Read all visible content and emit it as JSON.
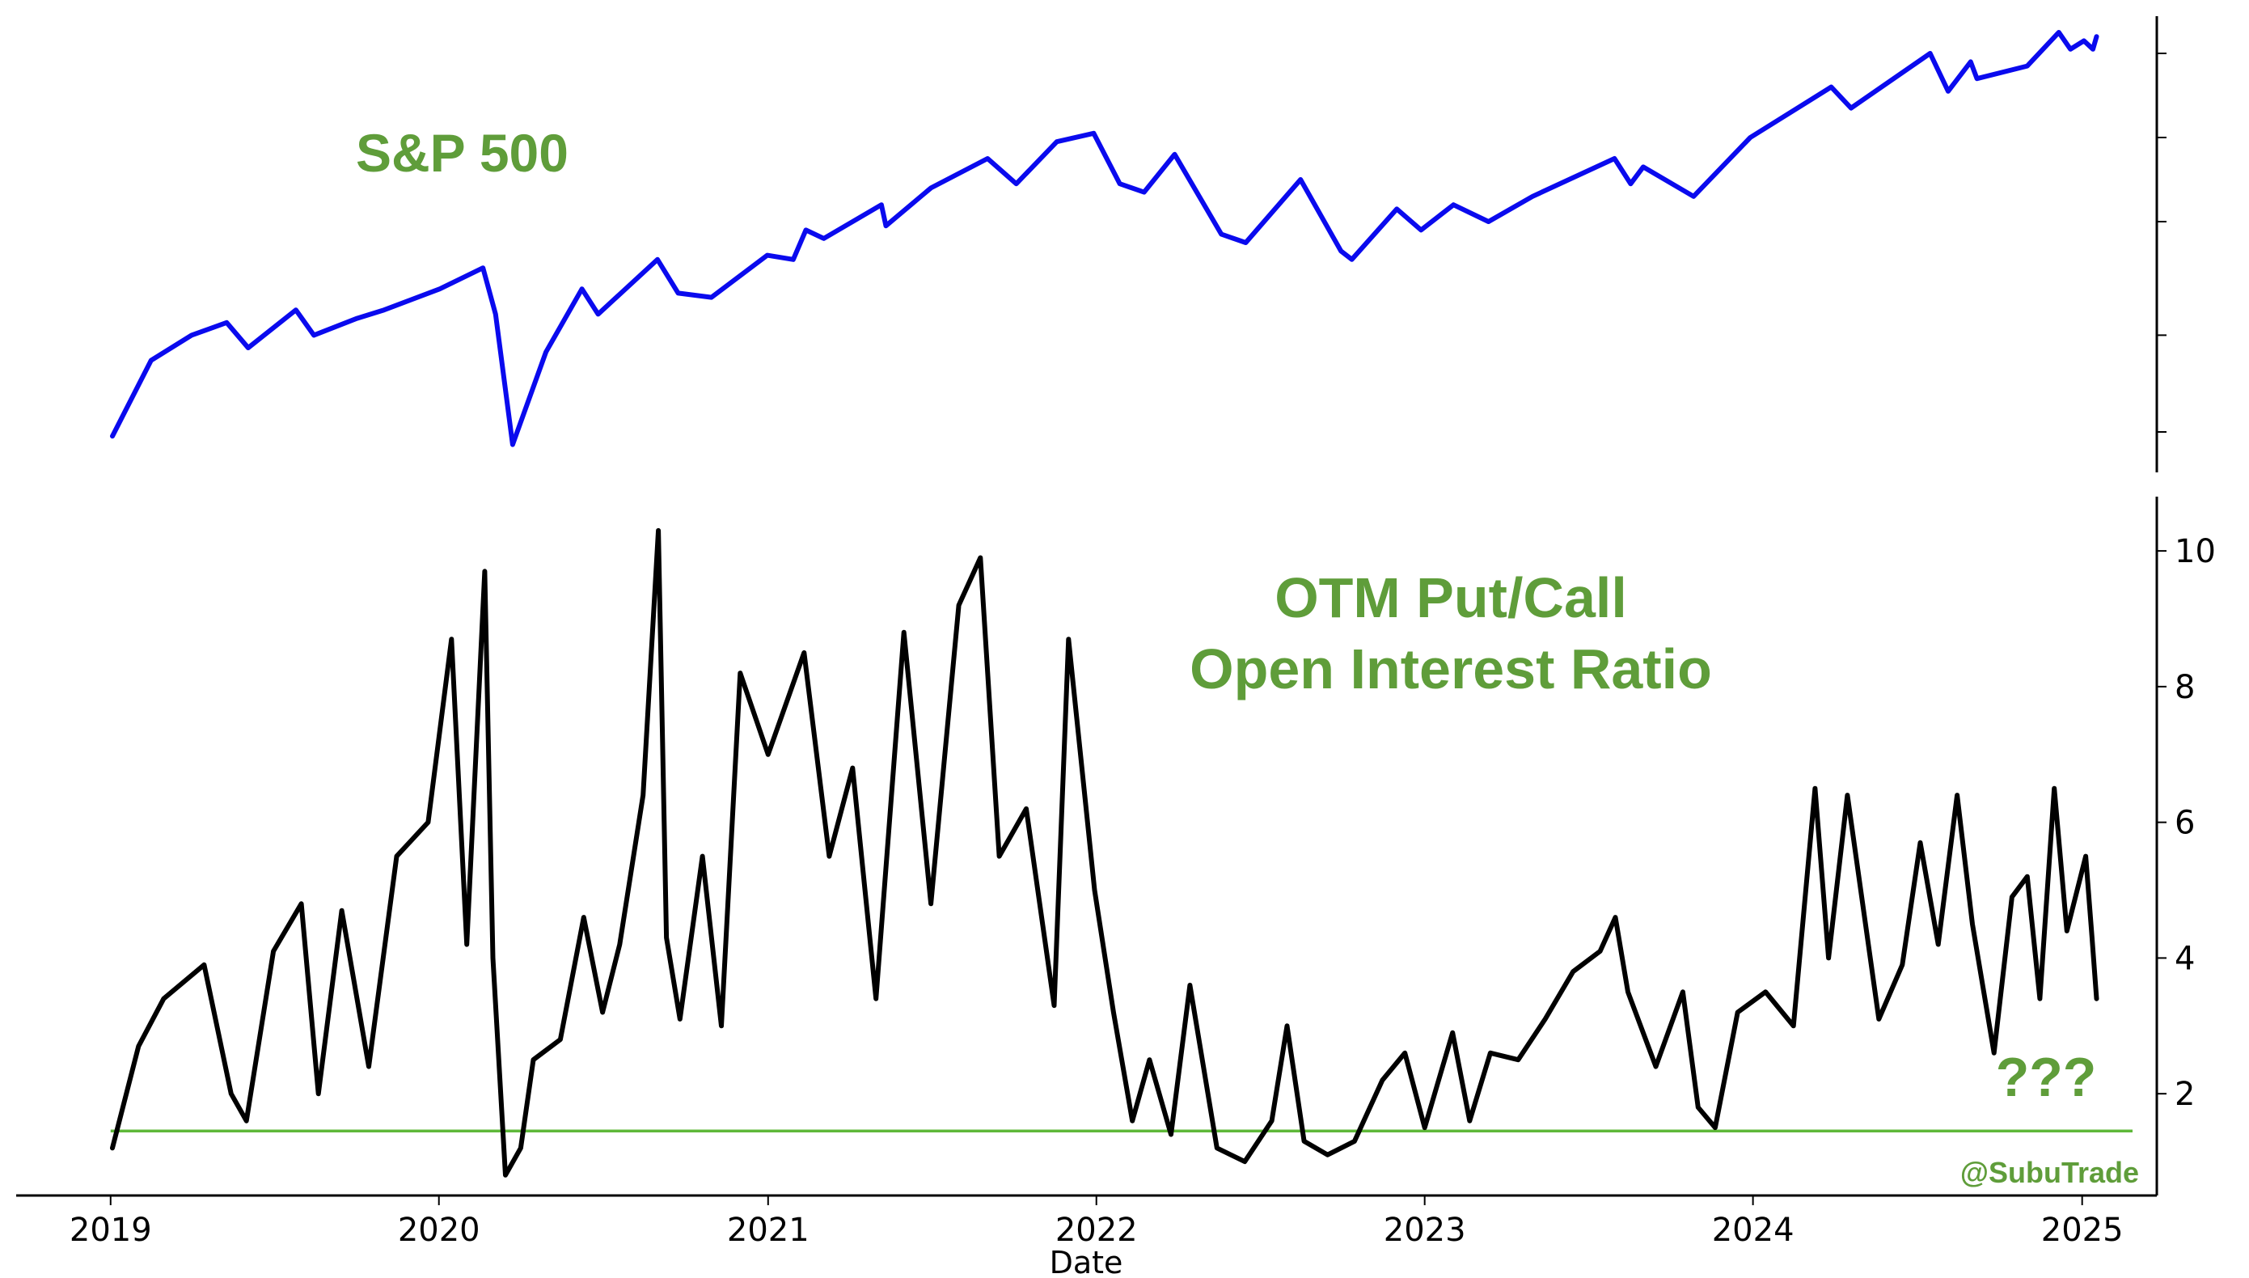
{
  "chart_data": [
    {
      "type": "line",
      "panel": "top",
      "annotation": "S&P 500",
      "series": [
        {
          "color": "#0a0aee",
          "x": [
            "2019-01-03",
            "2019-02-15",
            "2019-04-01",
            "2019-05-10",
            "2019-06-03",
            "2019-07-26",
            "2019-08-15",
            "2019-10-02",
            "2019-11-01",
            "2020-01-02",
            "2020-02-19",
            "2020-03-04",
            "2020-03-23",
            "2020-04-29",
            "2020-06-08",
            "2020-06-26",
            "2020-08-31",
            "2020-09-23",
            "2020-10-30",
            "2020-12-31",
            "2021-01-29",
            "2021-02-12",
            "2021-03-04",
            "2021-05-07",
            "2021-05-12",
            "2021-07-01",
            "2021-09-02",
            "2021-10-04",
            "2021-11-18",
            "2021-12-29",
            "2022-01-27",
            "2022-02-23",
            "2022-03-29",
            "2022-05-20",
            "2022-06-16",
            "2022-08-16",
            "2022-09-30",
            "2022-10-12",
            "2022-12-01",
            "2022-12-28",
            "2023-02-02",
            "2023-03-13",
            "2023-05-01",
            "2023-07-31",
            "2023-08-18",
            "2023-09-01",
            "2023-10-27",
            "2023-12-29",
            "2024-03-28",
            "2024-04-19",
            "2024-07-16",
            "2024-08-05",
            "2024-08-30",
            "2024-09-06",
            "2024-11-01",
            "2024-12-06",
            "2024-12-19",
            "2025-01-03",
            "2025-01-13",
            "2025-01-17"
          ],
          "values": [
            0.04,
            0.22,
            0.28,
            0.31,
            0.25,
            0.34,
            0.28,
            0.32,
            0.34,
            0.39,
            0.44,
            0.33,
            0.02,
            0.24,
            0.39,
            0.33,
            0.46,
            0.38,
            0.37,
            0.47,
            0.46,
            0.53,
            0.51,
            0.59,
            0.54,
            0.63,
            0.7,
            0.64,
            0.74,
            0.76,
            0.64,
            0.62,
            0.71,
            0.52,
            0.5,
            0.65,
            0.48,
            0.46,
            0.58,
            0.53,
            0.59,
            0.55,
            0.61,
            0.7,
            0.64,
            0.68,
            0.61,
            0.75,
            0.87,
            0.82,
            0.95,
            0.86,
            0.93,
            0.89,
            0.92,
            1.0,
            0.96,
            0.98,
            0.96,
            0.99
          ]
        }
      ]
    },
    {
      "type": "line",
      "panel": "bottom",
      "annotation": [
        "OTM Put/Call",
        "Open Interest Ratio"
      ],
      "xlabel": "Date",
      "ylim": [
        0.5,
        10.8
      ],
      "yticks": [
        2,
        4,
        6,
        8,
        10
      ],
      "ytick_labels": [
        "2",
        "4",
        "6",
        "8",
        "10"
      ],
      "xticks": [
        "2019-01-01",
        "2020-01-01",
        "2021-01-01",
        "2022-01-01",
        "2023-01-01",
        "2024-01-01",
        "2025-01-01"
      ],
      "xtick_labels": [
        "2019",
        "2020",
        "2021",
        "2022",
        "2023",
        "2024",
        "2025"
      ],
      "xlim": [
        "2018-09-18",
        "2025-03-25"
      ],
      "reference_line": {
        "y": 1.45,
        "color": "#5fb83a"
      },
      "note": "???",
      "series": [
        {
          "color": "#000000",
          "x": [
            "2019-01-03",
            "2019-02-01",
            "2019-03-01",
            "2019-04-15",
            "2019-05-15",
            "2019-06-01",
            "2019-07-01",
            "2019-08-01",
            "2019-08-20",
            "2019-09-15",
            "2019-10-15",
            "2019-11-15",
            "2019-12-20",
            "2020-01-15",
            "2020-02-01",
            "2020-02-21",
            "2020-03-01",
            "2020-03-15",
            "2020-04-01",
            "2020-04-15",
            "2020-05-15",
            "2020-06-10",
            "2020-07-01",
            "2020-07-20",
            "2020-08-15",
            "2020-09-01",
            "2020-09-10",
            "2020-09-25",
            "2020-10-20",
            "2020-11-10",
            "2020-12-01",
            "2021-01-01",
            "2021-02-10",
            "2021-03-10",
            "2021-04-05",
            "2021-05-01",
            "2021-06-01",
            "2021-07-01",
            "2021-08-01",
            "2021-08-25",
            "2021-09-15",
            "2021-10-15",
            "2021-11-15",
            "2021-12-01",
            "2021-12-30",
            "2022-01-20",
            "2022-02-10",
            "2022-03-01",
            "2022-03-25",
            "2022-04-15",
            "2022-05-15",
            "2022-06-15",
            "2022-07-15",
            "2022-08-01",
            "2022-08-20",
            "2022-09-15",
            "2022-10-15",
            "2022-11-15",
            "2022-12-10",
            "2023-01-01",
            "2023-02-01",
            "2023-02-20",
            "2023-03-15",
            "2023-04-15",
            "2023-05-15",
            "2023-06-15",
            "2023-07-15",
            "2023-08-01",
            "2023-08-15",
            "2023-09-15",
            "2023-10-15",
            "2023-11-01",
            "2023-11-20",
            "2023-12-15",
            "2024-01-15",
            "2024-02-15",
            "2024-03-10",
            "2024-03-25",
            "2024-04-15",
            "2024-05-20",
            "2024-06-15",
            "2024-07-05",
            "2024-07-25",
            "2024-08-15",
            "2024-09-01",
            "2024-09-25",
            "2024-10-15",
            "2024-11-01",
            "2024-11-15",
            "2024-12-01",
            "2024-12-15",
            "2025-01-05",
            "2025-01-12",
            "2025-01-17"
          ],
          "values": [
            1.2,
            2.7,
            3.4,
            3.9,
            2.0,
            1.6,
            4.1,
            4.8,
            2.0,
            4.7,
            2.4,
            5.5,
            6.0,
            8.7,
            4.2,
            9.7,
            4.0,
            0.8,
            1.2,
            2.5,
            2.8,
            4.6,
            3.2,
            4.2,
            6.4,
            10.3,
            4.3,
            3.1,
            5.5,
            3.0,
            8.2,
            7.0,
            8.5,
            5.5,
            6.8,
            3.4,
            8.8,
            4.8,
            9.2,
            9.9,
            5.5,
            6.2,
            3.3,
            8.7,
            5.0,
            3.2,
            1.6,
            2.5,
            1.4,
            3.6,
            1.2,
            1.0,
            1.6,
            3.0,
            1.3,
            1.1,
            1.3,
            2.2,
            2.6,
            1.5,
            2.9,
            1.6,
            2.6,
            2.5,
            3.1,
            3.8,
            4.1,
            4.6,
            3.5,
            2.4,
            3.5,
            1.8,
            1.5,
            3.2,
            3.5,
            3.0,
            6.5,
            4.0,
            6.4,
            3.1,
            3.9,
            5.7,
            4.2,
            6.4,
            4.5,
            2.6,
            4.9,
            5.2,
            3.4,
            6.5,
            4.4,
            5.5,
            4.3,
            3.4
          ]
        }
      ]
    }
  ],
  "watermark": "@SubuTrade"
}
